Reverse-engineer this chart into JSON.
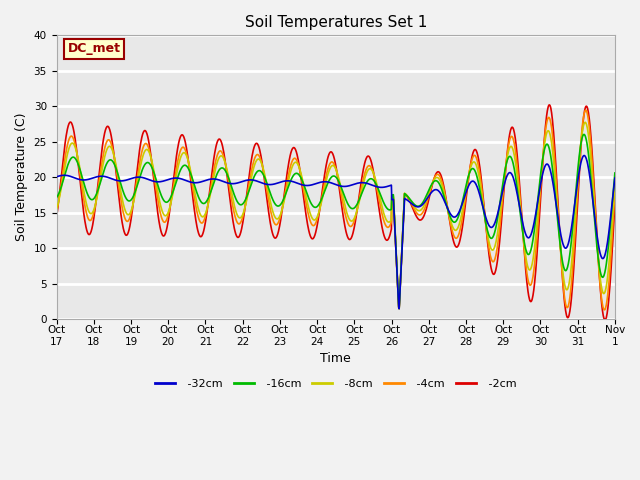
{
  "title": "Soil Temperatures Set 1",
  "xlabel": "Time",
  "ylabel": "Soil Temperature (C)",
  "ylim": [
    0,
    40
  ],
  "plot_bg_color": "#e8e8e8",
  "fig_bg_color": "#f2f2f2",
  "grid_color": "#ffffff",
  "series": {
    "-32cm": {
      "color": "#0000cc",
      "lw": 1.2,
      "zorder": 5
    },
    "-16cm": {
      "color": "#00bb00",
      "lw": 1.2,
      "zorder": 4
    },
    "-8cm": {
      "color": "#cccc00",
      "lw": 1.2,
      "zorder": 3
    },
    "-4cm": {
      "color": "#ff8800",
      "lw": 1.2,
      "zorder": 2
    },
    "-2cm": {
      "color": "#dd0000",
      "lw": 1.2,
      "zorder": 1
    }
  },
  "xtick_labels": [
    "Oct 17",
    "Oct 18",
    "Oct 19",
    "Oct 20",
    "Oct 21",
    "Oct 22",
    "Oct 23",
    "Oct 24",
    "Oct 25",
    "Oct 26",
    "Oct 27",
    "Oct 28",
    "Oct 29",
    "Oct 30",
    "Oct 31",
    "Nov 1"
  ],
  "annotation": "DC_met",
  "annotation_color": "#990000",
  "annotation_bg": "#ffffcc",
  "title_fontsize": 11,
  "axis_fontsize": 9,
  "tick_fontsize": 7.5,
  "legend_fontsize": 8
}
